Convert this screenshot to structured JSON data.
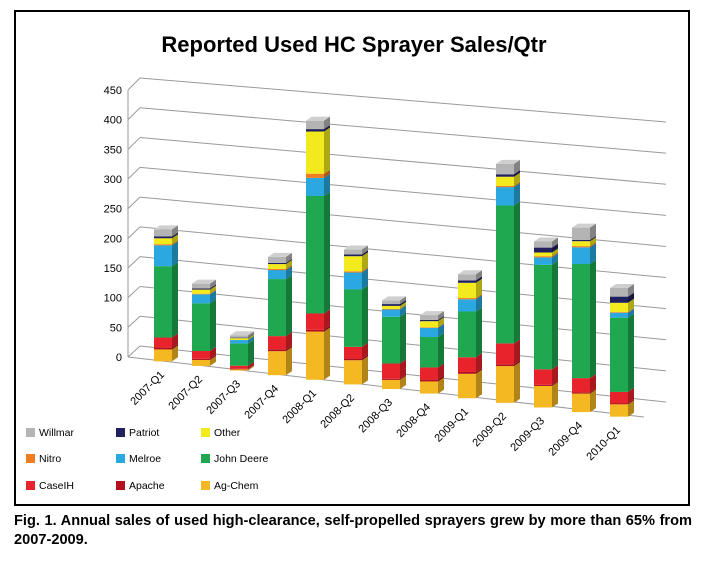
{
  "chart_data": {
    "type": "bar",
    "stacked": true,
    "projection": "3d",
    "title": "Reported Used HC Sprayer Sales/Qtr",
    "xlabel": "",
    "ylabel": "",
    "ylim": [
      0,
      450
    ],
    "yticks": [
      0,
      50,
      100,
      150,
      200,
      250,
      300,
      350,
      400,
      450
    ],
    "grid": true,
    "legend_position": "bottom-left",
    "categories": [
      "2007-Q1",
      "2007-Q2",
      "2007-Q3",
      "2007-Q4",
      "2008-Q1",
      "2008-Q2",
      "2008-Q3",
      "2008-Q4",
      "2009-Q1",
      "2009-Q2",
      "2009-Q3",
      "2009-Q4",
      "2010-Q1"
    ],
    "series": [
      {
        "name": "Ag-Chem",
        "color": "#f4b823",
        "values": [
          20,
          10,
          2,
          40,
          80,
          40,
          15,
          20,
          40,
          60,
          35,
          30,
          20
        ]
      },
      {
        "name": "Apache",
        "color": "#b30f1c",
        "values": [
          3,
          2,
          1,
          3,
          3,
          3,
          2,
          3,
          3,
          3,
          2,
          2,
          2
        ]
      },
      {
        "name": "CaseIH",
        "color": "#e8232b",
        "values": [
          17,
          13,
          5,
          22,
          27,
          19,
          25,
          20,
          24,
          34,
          25,
          23,
          18
        ]
      },
      {
        "name": "John Deere",
        "color": "#1fa84f",
        "values": [
          120,
          80,
          37,
          95,
          195,
          95,
          77,
          50,
          75,
          225,
          170,
          185,
          120
        ]
      },
      {
        "name": "Melroe",
        "color": "#2aa8df",
        "values": [
          35,
          15,
          6,
          15,
          30,
          28,
          12,
          15,
          20,
          30,
          12,
          27,
          8
        ]
      },
      {
        "name": "Nitro",
        "color": "#ef7d22",
        "values": [
          2,
          1,
          0,
          2,
          7,
          2,
          1,
          1,
          2,
          2,
          2,
          2,
          1
        ]
      },
      {
        "name": "Other",
        "color": "#f2ea1c",
        "values": [
          10,
          7,
          3,
          8,
          70,
          25,
          5,
          10,
          25,
          15,
          6,
          8,
          15
        ]
      },
      {
        "name": "Patriot",
        "color": "#20205e",
        "values": [
          3,
          2,
          1,
          2,
          4,
          3,
          3,
          2,
          4,
          4,
          8,
          2,
          10
        ]
      },
      {
        "name": "Willmar",
        "color": "#b4b4b4",
        "values": [
          12,
          8,
          4,
          10,
          14,
          8,
          6,
          8,
          10,
          17,
          10,
          20,
          14
        ]
      }
    ]
  },
  "caption": "Fig. 1. Annual sales of used high-clearance, self-propelled sprayers grew by more than 65% from 2007-2009."
}
